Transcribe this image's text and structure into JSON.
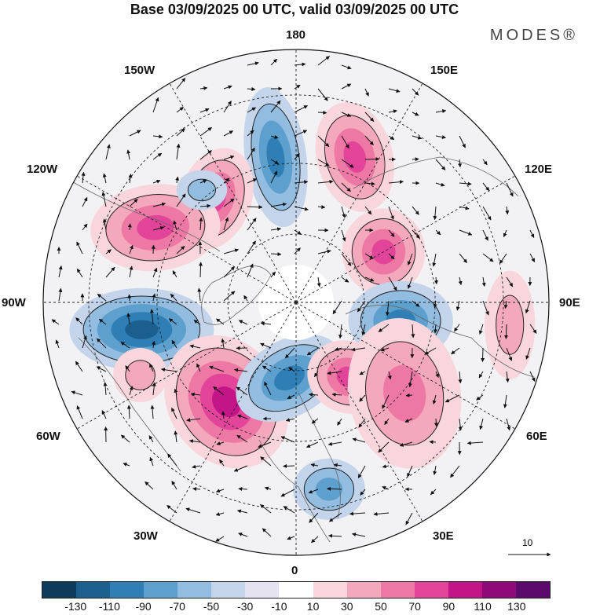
{
  "title": "Base 03/09/2025 00 UTC, valid 03/09/2025 00 UTC",
  "brand": "MODES®",
  "longitude_labels": {
    "top": "180",
    "top_right": "150E",
    "upper_right": "120E",
    "right": "90E",
    "lower_right": "60E",
    "bottom_right": "30E",
    "bottom": "0",
    "bottom_left": "30W",
    "lower_left": "60W",
    "left": "90W",
    "upper_left": "120W",
    "top_left": "150W"
  },
  "reference_vector": "10",
  "colorbar": {
    "colors": [
      "#0e3a5c",
      "#1b5f8f",
      "#2f7fb6",
      "#5d9fcd",
      "#93bde0",
      "#c4d4ea",
      "#e6e3f0",
      "#ffffff",
      "#f8d6dc",
      "#f4a8bc",
      "#ee78a4",
      "#e2449a",
      "#c21588",
      "#8f0a79",
      "#5a0a6b"
    ],
    "tick_labels": [
      "-130",
      "-110",
      "-90",
      "-70",
      "-50",
      "-30",
      "-10",
      "10",
      "30",
      "50",
      "70",
      "90",
      "110",
      "130"
    ]
  },
  "anomaly_centers": [
    {
      "sign": "negative",
      "intensity": 3
    },
    {
      "sign": "positive",
      "intensity": 3
    },
    {
      "sign": "positive",
      "intensity": 3
    },
    {
      "sign": "positive",
      "intensity": 3
    },
    {
      "sign": "positive",
      "intensity": 3
    },
    {
      "sign": "negative",
      "intensity": 4
    },
    {
      "sign": "negative",
      "intensity": 3
    },
    {
      "sign": "positive",
      "intensity": 4
    },
    {
      "sign": "negative",
      "intensity": 3
    },
    {
      "sign": "positive",
      "intensity": 3
    },
    {
      "sign": "positive",
      "intensity": 2
    },
    {
      "sign": "negative",
      "intensity": 2
    },
    {
      "sign": "positive",
      "intensity": 1
    },
    {
      "sign": "negative",
      "intensity": 1
    },
    {
      "sign": "positive",
      "intensity": 1
    }
  ]
}
